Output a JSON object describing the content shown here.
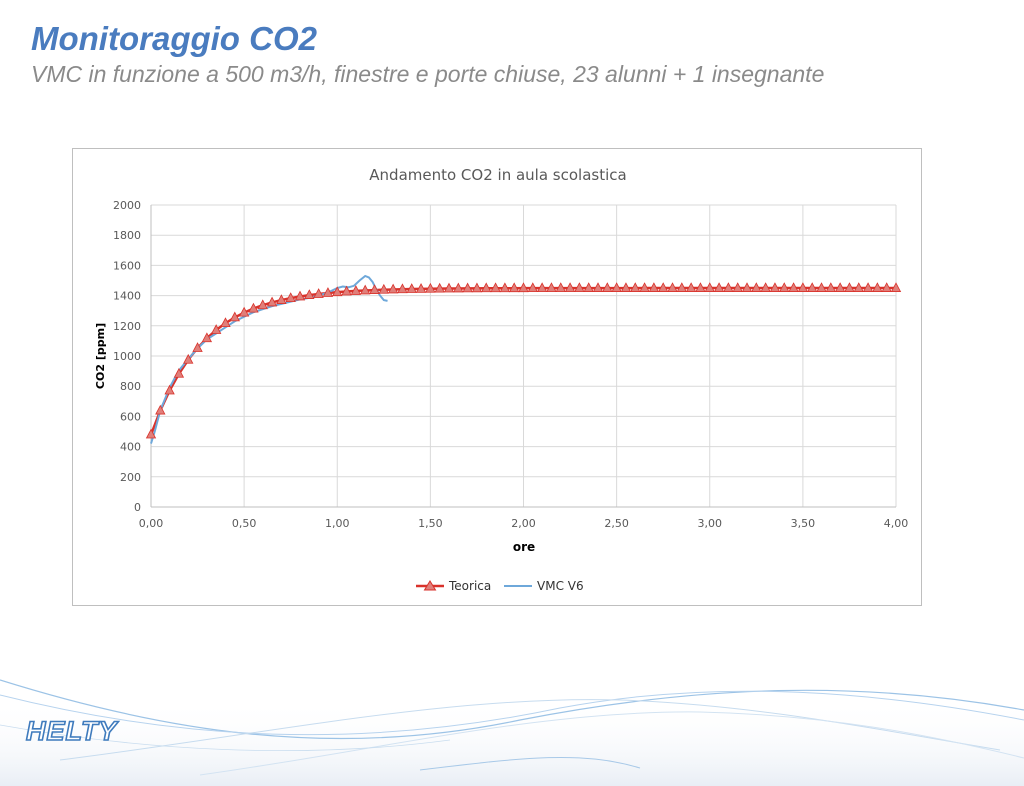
{
  "slide": {
    "title": "Monitoraggio CO2",
    "subtitle": "VMC in funzione a 500 m3/h, finestre e porte chiuse, 23 alunni + 1 insegnante",
    "logo_text": "HELTY"
  },
  "colors": {
    "title": "#4a7cbf",
    "series_teorica": "#d9322b",
    "series_vmc": "#6ea8da",
    "grid": "#d9d9d9"
  },
  "chart_data": {
    "type": "line",
    "title": "Andamento CO2 in aula scolastica",
    "xlabel": "ore",
    "ylabel": "CO2 [ppm]",
    "xlim": [
      0,
      4
    ],
    "ylim": [
      0,
      2000
    ],
    "xticks": [
      0,
      0.5,
      1,
      1.5,
      2,
      2.5,
      3,
      3.5,
      4
    ],
    "xtick_labels": [
      "0,00",
      "0,50",
      "1,00",
      "1,50",
      "2,00",
      "2,50",
      "3,00",
      "3,50",
      "4,00"
    ],
    "yticks": [
      0,
      200,
      400,
      600,
      800,
      1000,
      1200,
      1400,
      1600,
      1800,
      2000
    ],
    "ytick_labels": [
      "0",
      "200",
      "400",
      "600",
      "800",
      "1000",
      "1200",
      "1400",
      "1600",
      "1800",
      "2000"
    ],
    "grid": true,
    "legend_position": "bottom",
    "series": [
      {
        "name": "Teorica",
        "color": "#d9322b",
        "marker": "triangle",
        "model": {
          "start": 480,
          "end": 1450,
          "tau": 0.28,
          "step": 0.05
        }
      },
      {
        "name": "VMC V6",
        "color": "#6ea8da",
        "marker": "none",
        "x": [
          0,
          0.02,
          0.05,
          0.08,
          0.1,
          0.13,
          0.16,
          0.2,
          0.25,
          0.3,
          0.35,
          0.4,
          0.45,
          0.5,
          0.55,
          0.6,
          0.65,
          0.7,
          0.75,
          0.8,
          0.85,
          0.9,
          0.95,
          1.0,
          1.03,
          1.06,
          1.09,
          1.12,
          1.15,
          1.17,
          1.19,
          1.21,
          1.23,
          1.25,
          1.27
        ],
        "y": [
          420,
          500,
          640,
          730,
          790,
          860,
          920,
          980,
          1050,
          1110,
          1150,
          1190,
          1230,
          1260,
          1290,
          1310,
          1330,
          1345,
          1360,
          1375,
          1385,
          1400,
          1420,
          1450,
          1460,
          1455,
          1465,
          1500,
          1530,
          1520,
          1490,
          1440,
          1400,
          1370,
          1365
        ]
      }
    ]
  }
}
